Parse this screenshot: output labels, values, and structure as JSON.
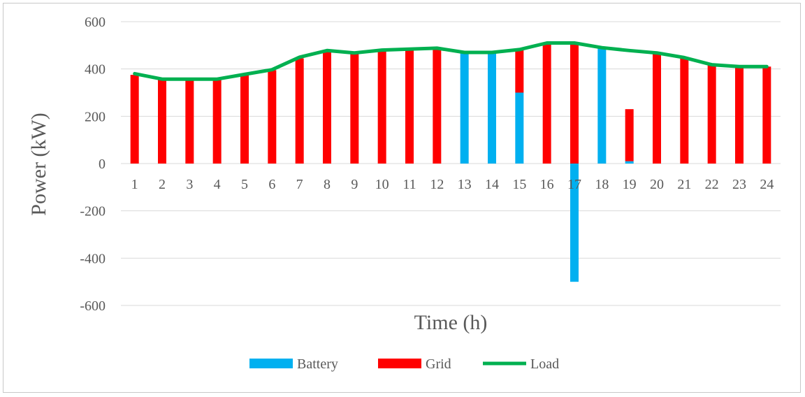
{
  "chart_data": {
    "type": "bar",
    "title": "",
    "xlabel": "Time (h)",
    "ylabel": "Power (kW)",
    "ylim": [
      -600,
      600
    ],
    "yticks": [
      600,
      400,
      200,
      0,
      -200,
      -400,
      -600
    ],
    "grid": true,
    "legend_position": "bottom",
    "categories": [
      "1",
      "2",
      "3",
      "4",
      "5",
      "6",
      "7",
      "8",
      "9",
      "10",
      "11",
      "12",
      "13",
      "14",
      "15",
      "16",
      "17",
      "18",
      "19",
      "20",
      "21",
      "22",
      "23",
      "24"
    ],
    "series": [
      {
        "name": "Battery",
        "kind": "bar",
        "color": "#00b0f0",
        "values": [
          0,
          0,
          0,
          0,
          0,
          0,
          0,
          0,
          0,
          0,
          0,
          0,
          470,
          470,
          300,
          0,
          -500,
          490,
          10,
          0,
          0,
          0,
          0,
          0
        ]
      },
      {
        "name": "Grid",
        "kind": "bar",
        "color": "#ff0000",
        "values": [
          375,
          355,
          355,
          355,
          375,
          395,
          445,
          475,
          465,
          478,
          480,
          488,
          0,
          0,
          182,
          510,
          510,
          0,
          220,
          465,
          445,
          418,
          410,
          410
        ]
      },
      {
        "name": "Load",
        "kind": "line",
        "color": "#00b050",
        "values": [
          380,
          357,
          357,
          357,
          377,
          397,
          450,
          478,
          468,
          480,
          484,
          488,
          470,
          470,
          482,
          510,
          510,
          490,
          478,
          468,
          448,
          418,
          410,
          410
        ]
      }
    ]
  }
}
